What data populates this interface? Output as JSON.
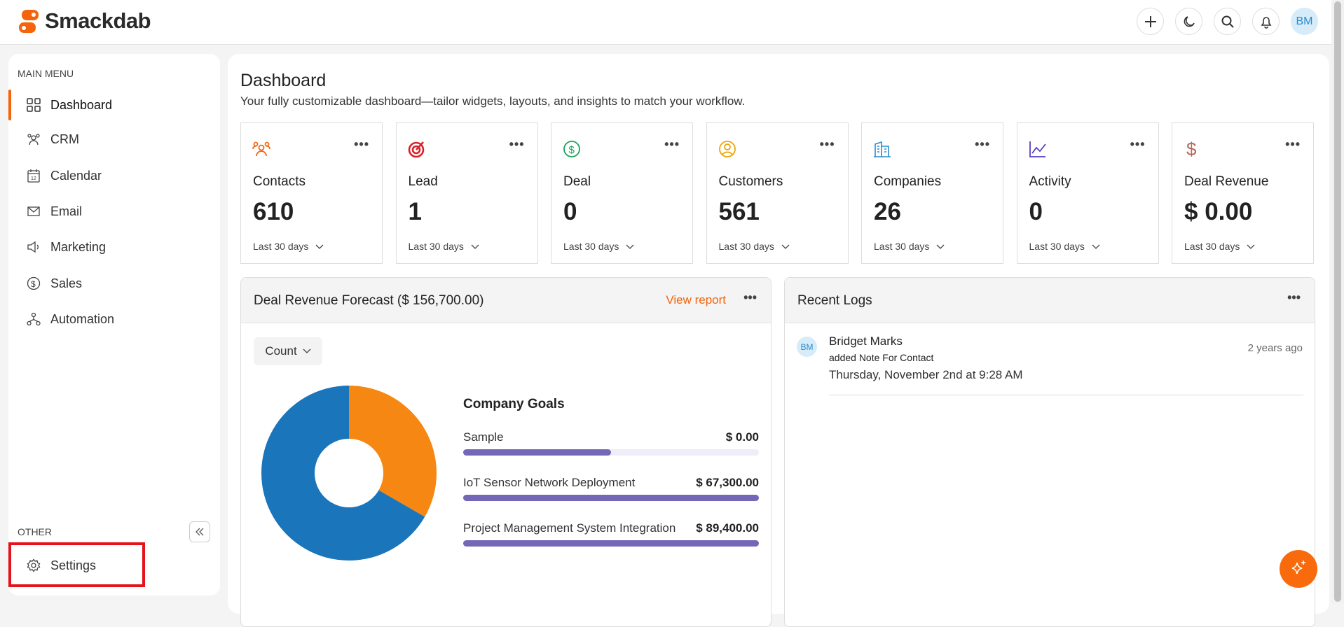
{
  "header": {
    "brand": "Smackdab",
    "avatar_initials": "BM",
    "icons": [
      "plus-icon",
      "moon-icon",
      "search-icon",
      "bell-icon"
    ]
  },
  "sidebar": {
    "main_menu_label": "MAIN MENU",
    "items": [
      {
        "label": "Dashboard",
        "icon": "grid-icon",
        "active": true
      },
      {
        "label": "CRM",
        "icon": "users-icon"
      },
      {
        "label": "Calendar",
        "icon": "calendar-icon"
      },
      {
        "label": "Email",
        "icon": "mail-icon"
      },
      {
        "label": "Marketing",
        "icon": "megaphone-icon"
      },
      {
        "label": "Sales",
        "icon": "dollar-circle-icon"
      },
      {
        "label": "Automation",
        "icon": "workflow-icon"
      }
    ],
    "other_label": "OTHER",
    "settings_label": "Settings"
  },
  "main": {
    "title": "Dashboard",
    "subtitle": "Your fully customizable dashboard—tailor widgets, layouts, and insights to match your workflow.",
    "cards": [
      {
        "label": "Contacts",
        "value": "610",
        "period": "Last 30 days",
        "color": "#f26b0f"
      },
      {
        "label": "Lead",
        "value": "1",
        "period": "Last 30 days",
        "color": "#d8232a"
      },
      {
        "label": "Deal",
        "value": "0",
        "period": "Last 30 days",
        "color": "#1aa35a"
      },
      {
        "label": "Customers",
        "value": "561",
        "period": "Last 30 days",
        "color": "#f0a30a"
      },
      {
        "label": "Companies",
        "value": "26",
        "period": "Last 30 days",
        "color": "#2a8ccd"
      },
      {
        "label": "Activity",
        "value": "0",
        "period": "Last 30 days",
        "color": "#5b3fc4"
      },
      {
        "label": "Deal Revenue",
        "value": "$ 0.00",
        "period": "Last 30 days",
        "color": "#b5685a"
      }
    ],
    "forecast": {
      "title": "Deal Revenue Forecast ($ 156,700.00)",
      "view_report": "View report",
      "dropdown": "Count",
      "donut": [
        {
          "value": 1,
          "color": "#f68712"
        },
        {
          "value": 2,
          "color": "#1a75bb"
        }
      ],
      "goals_title": "Company Goals",
      "goals": [
        {
          "label": "Sample",
          "value": "$ 0.00",
          "progress": 0.5
        },
        {
          "label": "IoT Sensor Network Deployment",
          "value": "$ 67,300.00",
          "progress": 1
        },
        {
          "label": "Project Management System Integration",
          "value": "$ 89,400.00",
          "progress": 1
        }
      ]
    },
    "logs": {
      "title": "Recent Logs",
      "entries": [
        {
          "initials": "BM",
          "name": "Bridget Marks",
          "action": "added Note For Contact",
          "date": "Thursday, November 2nd at 9:28 AM",
          "ago": "2 years ago"
        }
      ]
    }
  },
  "colors": {
    "accent": "#f5630a",
    "goal_bar": "#7467b7"
  }
}
